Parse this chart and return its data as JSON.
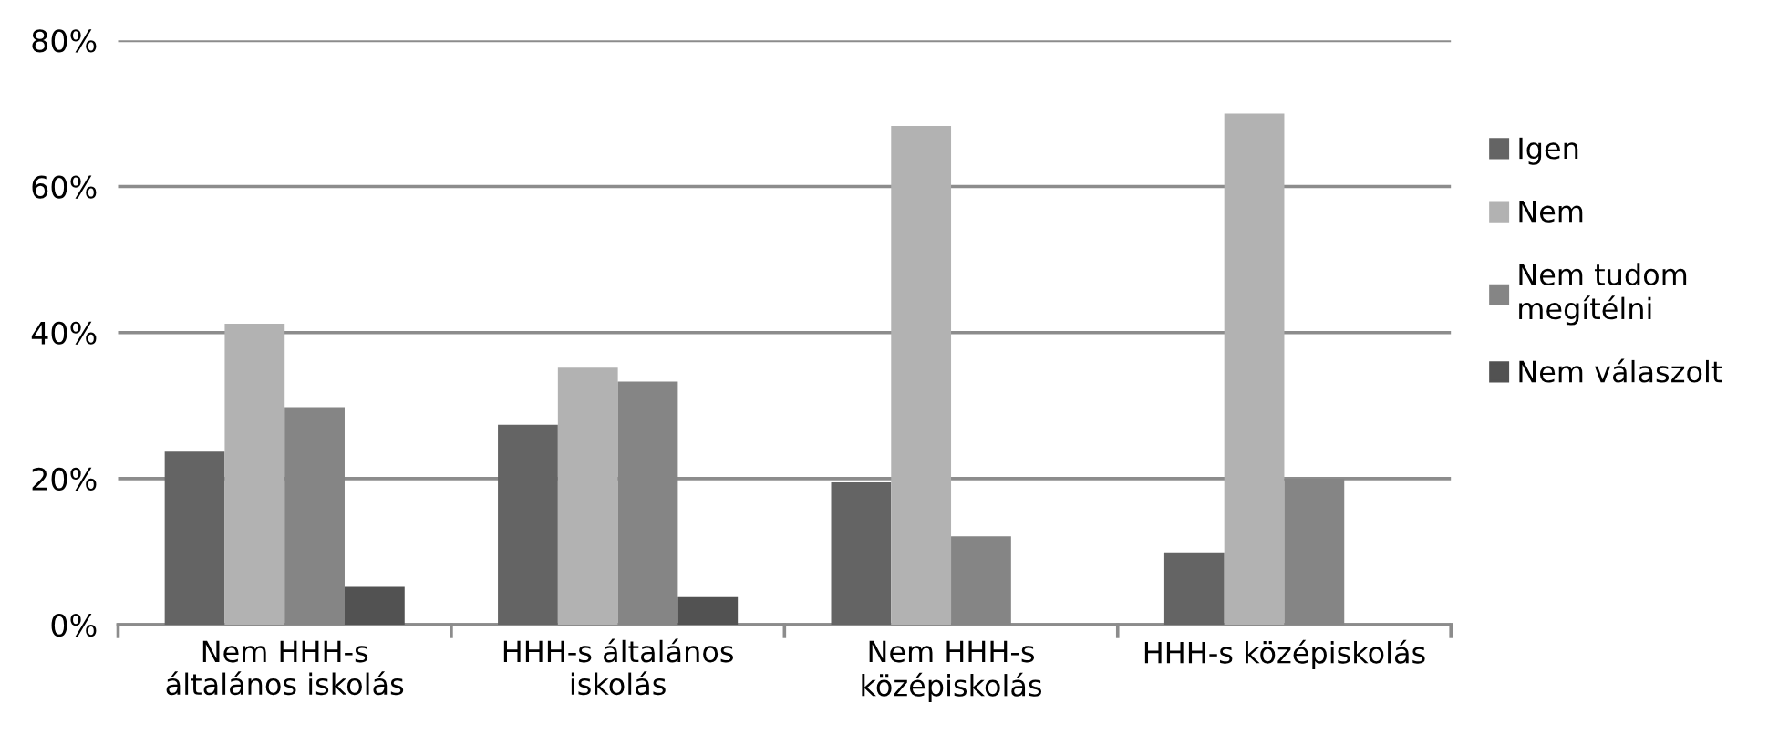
{
  "chart_data": {
    "type": "bar",
    "categories": [
      "Nem HHH-s\náltalános iskolás",
      "HHH-s általános\niskolás",
      "Nem HHH-s\nközépiskolás",
      "HHH-s középiskolás"
    ],
    "series": [
      {
        "name": "Igen",
        "color": "#646464",
        "values": [
          23.7,
          27.4,
          19.5,
          9.9
        ]
      },
      {
        "name": "Nem",
        "color": "#b2b2b2",
        "values": [
          41.2,
          35.2,
          68.3,
          70.0
        ]
      },
      {
        "name": "Nem tudom\nmegítélni",
        "color": "#858585",
        "values": [
          29.8,
          33.3,
          12.1,
          20.0
        ]
      },
      {
        "name": "Nem válaszolt",
        "color": "#525252",
        "values": [
          5.2,
          3.8,
          0,
          0
        ]
      }
    ],
    "ylim": [
      0,
      80
    ],
    "yticks": [
      {
        "value": 0,
        "label": "0%"
      },
      {
        "value": 20,
        "label": "20%"
      },
      {
        "value": 40,
        "label": "40%"
      },
      {
        "value": 60,
        "label": "60%"
      },
      {
        "value": 80,
        "label": "80%"
      }
    ],
    "grid": "y",
    "legend": "right"
  }
}
